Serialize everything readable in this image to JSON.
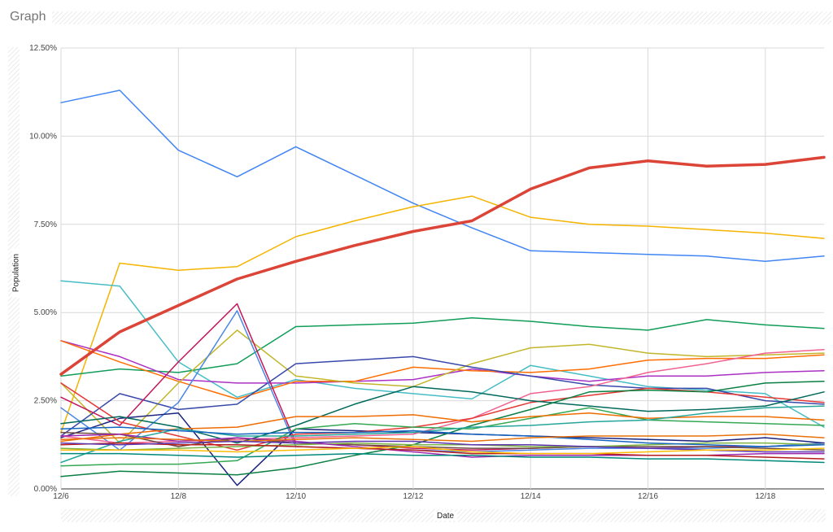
{
  "page": {
    "title": "Graph"
  },
  "chart_data": {
    "type": "line",
    "title": "",
    "xlabel": "Date",
    "ylabel": "Population",
    "x": [
      "12/6",
      "12/7",
      "12/8",
      "12/9",
      "12/10",
      "12/11",
      "12/12",
      "12/13",
      "12/14",
      "12/15",
      "12/16",
      "12/17",
      "12/18",
      "12/19"
    ],
    "x_tick_labels": [
      "12/6",
      "12/8",
      "12/10",
      "12/12",
      "12/14",
      "12/16",
      "12/18"
    ],
    "y_tick_labels": [
      "0.00%",
      "2.50%",
      "5.00%",
      "7.50%",
      "10.00%",
      "12.50%"
    ],
    "ylim": [
      0,
      12.5
    ],
    "grid": true,
    "series": [
      {
        "color": "#4285f4",
        "values": [
          10.95,
          11.3,
          9.6,
          8.85,
          9.7,
          8.9,
          8.1,
          7.4,
          6.75,
          6.7,
          6.65,
          6.6,
          6.45,
          6.6
        ]
      },
      {
        "color": "#f4b400",
        "values": [
          1.6,
          6.4,
          6.2,
          6.3,
          7.15,
          7.6,
          8.0,
          8.3,
          7.7,
          7.5,
          7.45,
          7.35,
          7.25,
          7.1
        ]
      },
      {
        "color": "#db4437",
        "width": 3.5,
        "values": [
          3.25,
          4.45,
          5.2,
          5.95,
          6.45,
          6.9,
          7.3,
          7.6,
          8.5,
          9.1,
          9.3,
          9.15,
          9.2,
          9.4
        ]
      },
      {
        "color": "#46bdc6",
        "values": [
          5.9,
          5.75,
          3.6,
          2.6,
          3.1,
          2.85,
          2.7,
          2.55,
          3.5,
          3.2,
          2.9,
          2.8,
          2.7,
          1.75
        ]
      },
      {
        "color": "#0f9d58",
        "values": [
          3.2,
          3.4,
          3.3,
          3.55,
          4.6,
          4.65,
          4.7,
          4.85,
          4.75,
          4.6,
          4.5,
          4.8,
          4.65,
          4.55
        ]
      },
      {
        "color": "#ab30c4",
        "values": [
          4.2,
          3.75,
          3.1,
          3.0,
          3.0,
          3.05,
          3.1,
          3.4,
          3.2,
          3.05,
          3.2,
          3.2,
          3.3,
          3.35
        ]
      },
      {
        "color": "#ff6d01",
        "values": [
          4.2,
          3.6,
          3.05,
          2.55,
          3.05,
          3.05,
          3.45,
          3.35,
          3.3,
          3.4,
          3.65,
          3.7,
          3.7,
          3.8
        ]
      },
      {
        "color": "#c2b62a",
        "values": [
          3.0,
          1.3,
          3.0,
          4.5,
          3.2,
          3.0,
          2.9,
          3.55,
          4.0,
          4.1,
          3.85,
          3.75,
          3.8,
          3.85
        ]
      },
      {
        "color": "#3949ab",
        "values": [
          1.5,
          2.7,
          2.25,
          2.4,
          3.55,
          3.65,
          3.75,
          3.45,
          3.2,
          2.95,
          2.85,
          2.85,
          2.5,
          2.4
        ]
      },
      {
        "color": "#c2185b",
        "values": [
          2.6,
          1.8,
          3.6,
          5.25,
          1.3,
          1.25,
          1.15,
          1.1,
          1.15,
          1.2,
          1.15,
          1.2,
          1.2,
          1.3
        ]
      },
      {
        "color": "#4a86e8",
        "values": [
          2.3,
          1.1,
          2.45,
          5.05,
          1.2,
          1.15,
          1.1,
          1.05,
          1.1,
          1.15,
          1.15,
          1.15,
          1.2,
          1.3
        ]
      },
      {
        "color": "#1a237e",
        "values": [
          1.45,
          2.0,
          2.15,
          0.1,
          1.7,
          1.65,
          1.6,
          1.55,
          1.5,
          1.45,
          1.4,
          1.35,
          1.45,
          1.3
        ]
      },
      {
        "color": "#f06292",
        "values": [
          1.5,
          1.3,
          1.35,
          1.4,
          1.45,
          1.5,
          1.55,
          2.0,
          2.7,
          2.9,
          3.3,
          3.55,
          3.85,
          3.95
        ]
      },
      {
        "color": "#e53935",
        "values": [
          3.0,
          1.9,
          1.5,
          1.1,
          1.55,
          1.6,
          1.75,
          2.0,
          2.45,
          2.65,
          2.85,
          2.75,
          2.6,
          2.45
        ]
      },
      {
        "color": "#00695c",
        "values": [
          1.85,
          2.05,
          1.75,
          1.3,
          1.8,
          2.4,
          2.9,
          2.75,
          2.5,
          2.35,
          2.2,
          2.25,
          2.35,
          2.75
        ]
      },
      {
        "color": "#0b8043",
        "values": [
          0.35,
          0.5,
          0.45,
          0.4,
          0.6,
          0.95,
          1.25,
          1.8,
          2.25,
          2.75,
          2.8,
          2.75,
          3.0,
          3.05
        ]
      },
      {
        "color": "#34a853",
        "values": [
          0.65,
          0.7,
          0.7,
          0.8,
          1.7,
          1.85,
          1.75,
          1.7,
          2.0,
          2.3,
          1.95,
          1.9,
          1.85,
          1.8
        ]
      },
      {
        "color": "#ef6c00",
        "values": [
          1.35,
          1.55,
          1.7,
          1.75,
          2.05,
          2.05,
          2.1,
          1.9,
          2.05,
          2.15,
          2.0,
          2.05,
          2.05,
          1.95
        ]
      },
      {
        "color": "#6d4c41",
        "values": [
          1.6,
          1.55,
          1.2,
          1.45,
          1.3,
          1.25,
          1.2,
          1.15,
          1.15,
          1.2,
          1.2,
          1.2,
          1.15,
          1.1
        ]
      },
      {
        "color": "#7cb342",
        "values": [
          1.15,
          1.1,
          1.15,
          1.2,
          1.25,
          1.3,
          1.25,
          1.25,
          1.2,
          1.2,
          1.25,
          1.3,
          1.3,
          1.25
        ]
      },
      {
        "color": "#9c27b0",
        "values": [
          1.5,
          1.55,
          1.35,
          1.45,
          1.35,
          1.2,
          1.05,
          0.9,
          0.95,
          0.95,
          0.95,
          0.95,
          1.0,
          1.0
        ]
      },
      {
        "color": "#26a69a",
        "values": [
          0.75,
          1.35,
          1.7,
          1.5,
          1.5,
          1.55,
          1.6,
          1.75,
          1.8,
          1.9,
          1.95,
          2.15,
          2.3,
          2.35
        ]
      },
      {
        "color": "#b71c1c",
        "values": [
          1.25,
          1.3,
          1.25,
          1.25,
          1.2,
          1.15,
          1.1,
          1.0,
          1.0,
          1.0,
          0.95,
          0.95,
          0.9,
          0.85
        ]
      },
      {
        "color": "#1565c0",
        "values": [
          1.7,
          1.75,
          1.65,
          1.55,
          1.6,
          1.6,
          1.65,
          1.55,
          1.5,
          1.4,
          1.3,
          1.25,
          1.2,
          1.25
        ]
      },
      {
        "color": "#e8710a",
        "values": [
          1.4,
          1.45,
          1.4,
          1.35,
          1.4,
          1.45,
          1.4,
          1.35,
          1.45,
          1.5,
          1.5,
          1.5,
          1.55,
          1.45
        ]
      },
      {
        "color": "#5e35b1",
        "values": [
          1.3,
          1.25,
          1.3,
          1.35,
          1.3,
          1.35,
          1.35,
          1.25,
          1.25,
          1.2,
          1.15,
          1.1,
          1.05,
          1.05
        ]
      },
      {
        "color": "#fbbc04",
        "values": [
          1.1,
          1.1,
          1.1,
          1.05,
          1.1,
          1.15,
          1.2,
          1.05,
          1.0,
          1.0,
          1.05,
          1.1,
          1.1,
          1.15
        ]
      },
      {
        "color": "#00897b",
        "values": [
          1.0,
          1.0,
          0.95,
          0.9,
          0.95,
          1.0,
          0.95,
          0.95,
          0.9,
          0.9,
          0.85,
          0.85,
          0.8,
          0.75
        ]
      }
    ]
  }
}
